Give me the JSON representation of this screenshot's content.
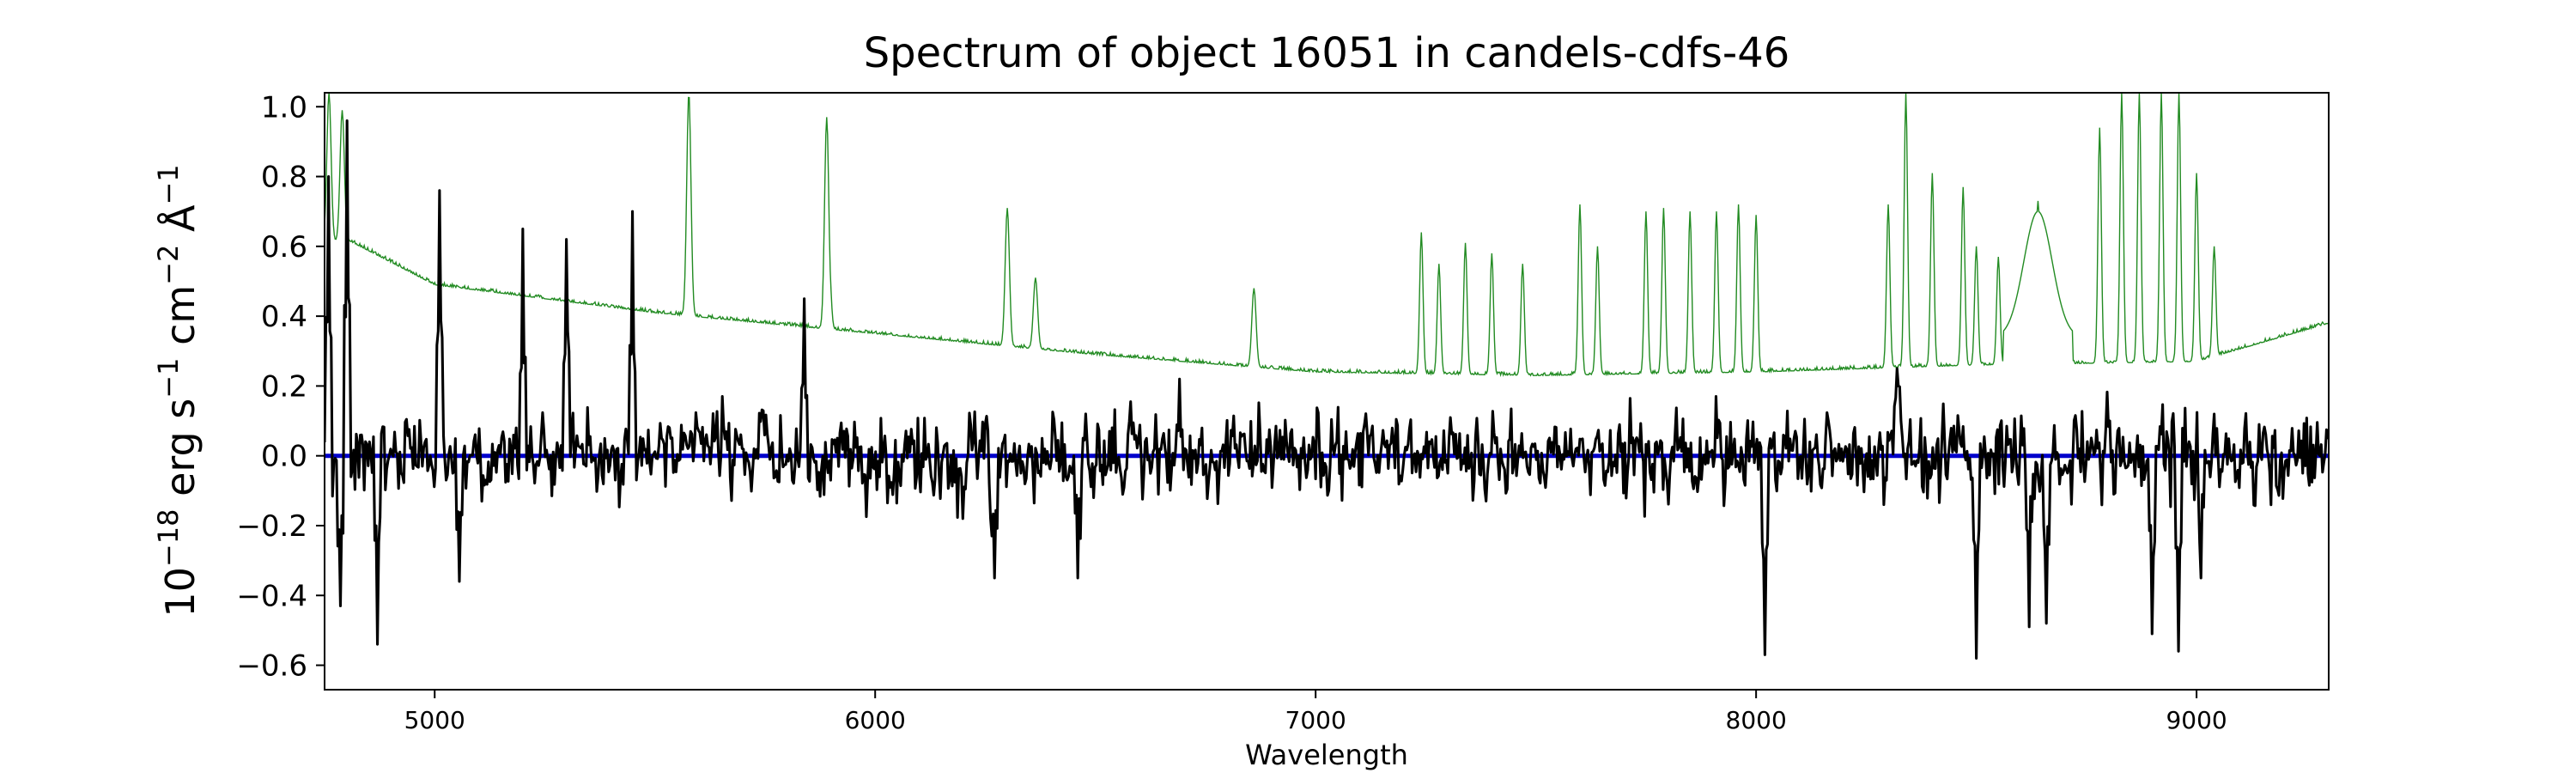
{
  "chart_data": {
    "type": "line",
    "title": "Spectrum of object 16051 in candels-cdfs-46",
    "xlabel": "Wavelength",
    "ylabel_parts": {
      "base": "10",
      "exp": "−18",
      "unit1": " erg s",
      "exp2": "−1",
      "unit2": " cm",
      "exp3": "−2",
      "unit3": " Å",
      "exp4": "−1"
    },
    "xlim": [
      4750,
      9300
    ],
    "ylim": [
      -0.67,
      1.04
    ],
    "xticks": [
      5000,
      6000,
      7000,
      8000,
      9000
    ],
    "xtick_labels": [
      "5000",
      "6000",
      "7000",
      "8000",
      "9000"
    ],
    "yticks": [
      -0.6,
      -0.4,
      -0.2,
      0.0,
      0.2,
      0.4,
      0.6,
      0.8,
      1.0
    ],
    "ytick_labels": [
      "−0.6",
      "−0.4",
      "−0.2",
      "0.0",
      "0.2",
      "0.4",
      "0.6",
      "0.8",
      "1.0"
    ],
    "grid": false,
    "series": [
      {
        "key": "sky",
        "color": "#228b22",
        "kind": "continuum",
        "baseline": [
          [
            4750,
            0.61
          ],
          [
            4800,
            0.62
          ],
          [
            5000,
            0.49
          ],
          [
            5500,
            0.41
          ],
          [
            6000,
            0.35
          ],
          [
            6500,
            0.29
          ],
          [
            7000,
            0.24
          ],
          [
            7500,
            0.23
          ],
          [
            8000,
            0.24
          ],
          [
            8500,
            0.26
          ],
          [
            9000,
            0.27
          ],
          [
            9300,
            0.38
          ]
        ],
        "emission_lines": [
          [
            4760,
            1.04
          ],
          [
            4790,
            0.99
          ],
          [
            5577,
            1.04
          ],
          [
            5890,
            0.97
          ],
          [
            5894,
            0.6
          ],
          [
            6300,
            0.71
          ],
          [
            6364,
            0.51
          ],
          [
            6860,
            0.48
          ],
          [
            7240,
            0.64
          ],
          [
            7280,
            0.55
          ],
          [
            7340,
            0.61
          ],
          [
            7400,
            0.58
          ],
          [
            7470,
            0.55
          ],
          [
            7600,
            0.72
          ],
          [
            7640,
            0.6
          ],
          [
            7750,
            0.7
          ],
          [
            7790,
            0.71
          ],
          [
            7850,
            0.7
          ],
          [
            7910,
            0.7
          ],
          [
            7960,
            0.72
          ],
          [
            8000,
            0.69
          ],
          [
            8300,
            0.72
          ],
          [
            8340,
            1.04
          ],
          [
            8400,
            0.81
          ],
          [
            8470,
            0.77
          ],
          [
            8500,
            0.6
          ],
          [
            8550,
            0.57
          ],
          [
            8640,
            0.73
          ],
          [
            8780,
            0.94
          ],
          [
            8830,
            1.04
          ],
          [
            8870,
            1.04
          ],
          [
            8920,
            1.04
          ],
          [
            8960,
            1.04
          ],
          [
            9000,
            0.81
          ],
          [
            9040,
            0.6
          ]
        ]
      },
      {
        "key": "error",
        "color": "#0000cc",
        "values": [
          [
            4750,
            0.0
          ],
          [
            9300,
            0.0
          ]
        ]
      },
      {
        "key": "flux",
        "color": "#000000",
        "kind": "noisy",
        "noise_sigma": 0.11,
        "extrema": [
          [
            4760,
            0.8
          ],
          [
            4785,
            -0.43
          ],
          [
            4800,
            0.96
          ],
          [
            4870,
            -0.54
          ],
          [
            5010,
            0.76
          ],
          [
            5056,
            -0.36
          ],
          [
            5200,
            0.65
          ],
          [
            5300,
            0.62
          ],
          [
            5450,
            0.7
          ],
          [
            5840,
            0.45
          ],
          [
            6200,
            -0.18
          ],
          [
            6270,
            -0.35
          ],
          [
            6460,
            -0.35
          ],
          [
            6690,
            0.22
          ],
          [
            8020,
            -0.57
          ],
          [
            8320,
            0.25
          ],
          [
            8500,
            -0.58
          ],
          [
            8620,
            -0.49
          ],
          [
            8660,
            -0.48
          ],
          [
            8900,
            -0.51
          ],
          [
            8960,
            -0.56
          ],
          [
            9010,
            -0.35
          ]
        ]
      }
    ]
  }
}
